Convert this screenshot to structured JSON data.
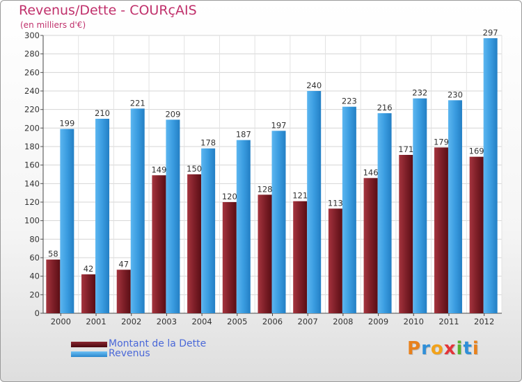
{
  "title": "Revenus/Dette - COURçAIS",
  "subtitle": "(en milliers d'€)",
  "colors": {
    "debt": "#7a1a22",
    "revenue": "#3a9ce0",
    "title": "#c0306b",
    "legend_text": "#4a68d8"
  },
  "legend": [
    {
      "label": "Montant de la Dette",
      "color_key": "debt"
    },
    {
      "label": "Revenus",
      "color_key": "revenue"
    }
  ],
  "logo": {
    "text": "Proxiti"
  },
  "chart_data": {
    "type": "bar",
    "categories": [
      "2000",
      "2001",
      "2002",
      "2003",
      "2004",
      "2005",
      "2006",
      "2007",
      "2008",
      "2009",
      "2010",
      "2011",
      "2012"
    ],
    "series": [
      {
        "name": "Montant de la Dette",
        "values": [
          58,
          42,
          47,
          149,
          150,
          120,
          128,
          121,
          113,
          146,
          171,
          179,
          169
        ]
      },
      {
        "name": "Revenus",
        "values": [
          199,
          210,
          221,
          209,
          178,
          187,
          197,
          240,
          223,
          216,
          232,
          230,
          297
        ]
      }
    ],
    "yticks": [
      0,
      20,
      40,
      60,
      80,
      100,
      120,
      140,
      160,
      180,
      200,
      220,
      240,
      260,
      280,
      300
    ],
    "ylim": [
      0,
      300
    ],
    "grid": true,
    "legend_position": "bottom-left"
  }
}
